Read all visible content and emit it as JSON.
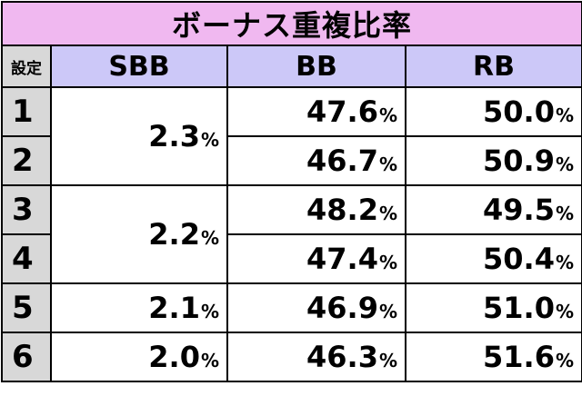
{
  "title": "ボーナス重複比率",
  "headers": {
    "setting": "設定",
    "sbb": "SBB",
    "bb": "BB",
    "rb": "RB"
  },
  "percent_sign": "%",
  "rows": [
    {
      "setting": "1",
      "sbb": "2.3",
      "bb": "47.6",
      "rb": "50.0"
    },
    {
      "setting": "2",
      "sbb": "2.3",
      "bb": "46.7",
      "rb": "50.9"
    },
    {
      "setting": "3",
      "sbb": "2.2",
      "bb": "48.2",
      "rb": "49.5"
    },
    {
      "setting": "4",
      "sbb": "2.2",
      "bb": "47.4",
      "rb": "50.4"
    },
    {
      "setting": "5",
      "sbb": "2.1",
      "bb": "46.9",
      "rb": "51.0"
    },
    {
      "setting": "6",
      "sbb": "2.0",
      "bb": "46.3",
      "rb": "51.6"
    }
  ],
  "colors": {
    "title_bg": "#f0b8f0",
    "header_bg": "#ccc8f8",
    "setting_bg": "#d8d8d8"
  }
}
